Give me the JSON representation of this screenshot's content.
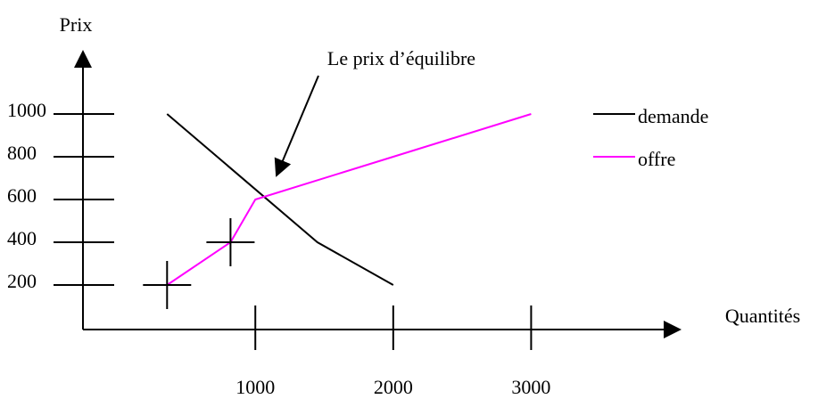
{
  "chart_data": {
    "type": "line",
    "y_label": "Prix",
    "x_label": "Quantités",
    "annotation": "Le prix d’équilibre",
    "series": [
      {
        "name": "demande",
        "color": "#000000",
        "x": [
          360,
          1450,
          2000
        ],
        "values": [
          1000,
          400,
          200
        ]
      },
      {
        "name": "offre",
        "color": "#ff00ff",
        "x": [
          360,
          820,
          1000,
          2000,
          3000
        ],
        "values": [
          200,
          400,
          600,
          800,
          1000
        ],
        "markers": [
          0,
          1
        ]
      }
    ],
    "xlim": [
      -250,
      4000
    ],
    "ylim": [
      0,
      1300
    ],
    "xticks": [
      1000,
      2000,
      3000
    ],
    "yticks": [
      200,
      400,
      600,
      800,
      1000
    ],
    "legend": "right",
    "grid": false
  }
}
